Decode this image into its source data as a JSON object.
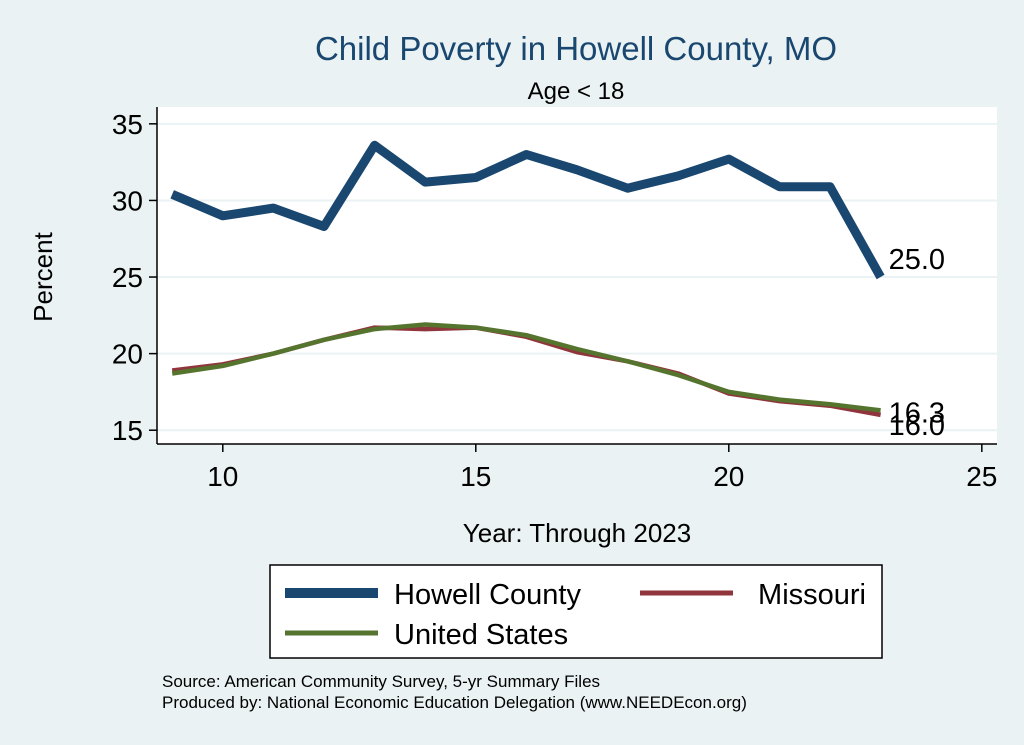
{
  "chart_data": {
    "type": "line",
    "title": "Child Poverty in Howell County, MO",
    "subtitle": "Age < 18",
    "xlabel": "Year: Through 2023",
    "ylabel": "Percent",
    "xlim": [
      8.7,
      25.3
    ],
    "ylim": [
      14.1,
      36.1
    ],
    "x_ticks": [
      10,
      15,
      20,
      25
    ],
    "y_ticks": [
      15,
      20,
      25,
      30,
      35
    ],
    "x_tick_labels": [
      "10",
      "15",
      "20",
      "25"
    ],
    "y_tick_labels": [
      "15",
      "20",
      "25",
      "30",
      "35"
    ],
    "grid": true,
    "legend_position": "bottom",
    "x": [
      9,
      10,
      11,
      12,
      13,
      14,
      15,
      16,
      17,
      18,
      19,
      20,
      21,
      22,
      23
    ],
    "series": [
      {
        "name": "Howell County",
        "color": "#1a476f",
        "values": [
          30.4,
          29.0,
          29.5,
          28.3,
          33.6,
          31.2,
          31.5,
          33.0,
          32.0,
          30.8,
          31.6,
          32.7,
          30.9,
          30.9,
          25.0
        ],
        "end_label": "25.0"
      },
      {
        "name": "Missouri",
        "color": "#90353b",
        "values": [
          18.9,
          19.3,
          20.0,
          20.9,
          21.7,
          21.6,
          21.7,
          21.1,
          20.1,
          19.5,
          18.7,
          17.4,
          16.9,
          16.6,
          16.0
        ],
        "end_label": "16.0"
      },
      {
        "name": "United States",
        "color": "#55752f",
        "values": [
          18.7,
          19.2,
          20.0,
          20.9,
          21.6,
          21.9,
          21.7,
          21.2,
          20.3,
          19.5,
          18.6,
          17.5,
          17.0,
          16.7,
          16.3
        ],
        "end_label": "16.3"
      }
    ]
  },
  "footer": {
    "source": "Source: American Community Survey, 5-yr Summary Files",
    "produced_by": "Produced by: National Economic Education Delegation (www.NEEDEcon.org)"
  },
  "colors": {
    "background": "#eaf2f3",
    "plot_background": "#ffffff",
    "title": "#1a476f"
  }
}
